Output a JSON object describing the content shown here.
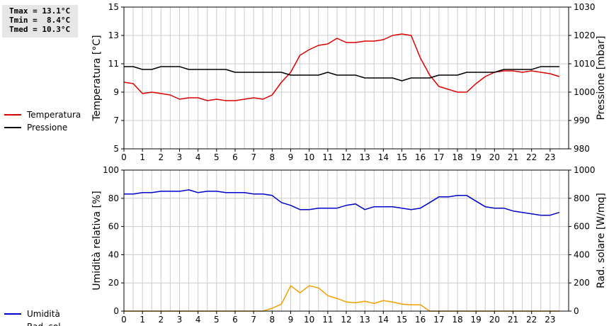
{
  "stats": {
    "tmax": "Tmax = 13.1°C",
    "tmin": "Tmin =  8.4°C",
    "tmed": "Tmed = 10.3°C"
  },
  "colors": {
    "temperature": "#dd0000",
    "pressure": "#000000",
    "humidity": "#0000cc",
    "radiation": "#f0a000",
    "grid": "#cccccc"
  },
  "chart_data": [
    {
      "type": "line",
      "legend_position": "left",
      "grid": true,
      "x_ticks": [
        "0",
        "1",
        "2",
        "3",
        "4",
        "5",
        "6",
        "7",
        "8",
        "9",
        "10",
        "11",
        "12",
        "13",
        "14",
        "15",
        "16",
        "17",
        "18",
        "19",
        "20",
        "21",
        "22",
        "23"
      ],
      "xlim": [
        0,
        24
      ],
      "ylabel": "Temperatura [°C]",
      "ylim": [
        5,
        15
      ],
      "y_ticks": [
        "5",
        "7",
        "9",
        "11",
        "13",
        "15"
      ],
      "y2label": "Pressione [mbar]",
      "y2lim": [
        980,
        1030
      ],
      "y2_ticks": [
        "980",
        "990",
        "1000",
        "1010",
        "1020",
        "1030"
      ],
      "series": [
        {
          "name": "Temperatura",
          "axis": "left",
          "x": [
            0,
            0.5,
            1,
            1.5,
            2,
            2.5,
            3,
            3.5,
            4,
            4.5,
            5,
            5.5,
            6,
            6.5,
            7,
            7.5,
            8,
            8.5,
            9,
            9.5,
            10,
            10.5,
            11,
            11.5,
            12,
            12.5,
            13,
            13.5,
            14,
            14.5,
            15,
            15.5,
            16,
            16.5,
            17,
            17.5,
            18,
            18.5,
            19,
            19.5,
            20,
            20.5,
            21,
            21.5,
            22,
            22.5,
            23,
            23.5
          ],
          "values": [
            9.7,
            9.6,
            8.9,
            9.0,
            8.9,
            8.8,
            8.5,
            8.6,
            8.6,
            8.4,
            8.5,
            8.4,
            8.4,
            8.5,
            8.6,
            8.5,
            8.8,
            9.7,
            10.4,
            11.6,
            12.0,
            12.3,
            12.4,
            12.8,
            12.5,
            12.5,
            12.6,
            12.6,
            12.7,
            13.0,
            13.1,
            13.0,
            11.4,
            10.2,
            9.4,
            9.2,
            9.0,
            9.0,
            9.6,
            10.1,
            10.4,
            10.5,
            10.5,
            10.4,
            10.5,
            10.4,
            10.3,
            10.1
          ]
        },
        {
          "name": "Pressione",
          "axis": "right",
          "x": [
            0,
            0.5,
            1,
            1.5,
            2,
            2.5,
            3,
            3.5,
            4,
            4.5,
            5,
            5.5,
            6,
            6.5,
            7,
            7.5,
            8,
            8.5,
            9,
            9.5,
            10,
            10.5,
            11,
            11.5,
            12,
            12.5,
            13,
            13.5,
            14,
            14.5,
            15,
            15.5,
            16,
            16.5,
            17,
            17.5,
            18,
            18.5,
            19,
            19.5,
            20,
            20.5,
            21,
            21.5,
            22,
            22.5,
            23,
            23.5
          ],
          "values": [
            1009,
            1009,
            1008,
            1008,
            1009,
            1009,
            1009,
            1008,
            1008,
            1008,
            1008,
            1008,
            1007,
            1007,
            1007,
            1007,
            1007,
            1007,
            1006,
            1006,
            1006,
            1006,
            1007,
            1006,
            1006,
            1006,
            1005,
            1005,
            1005,
            1005,
            1004,
            1005,
            1005,
            1005,
            1006,
            1006,
            1006,
            1007,
            1007,
            1007,
            1007,
            1008,
            1008,
            1008,
            1008,
            1009,
            1009,
            1009
          ]
        }
      ]
    },
    {
      "type": "line",
      "legend_position": "left",
      "grid": true,
      "x_ticks": [
        "0",
        "1",
        "2",
        "3",
        "4",
        "5",
        "6",
        "7",
        "8",
        "9",
        "10",
        "11",
        "12",
        "13",
        "14",
        "15",
        "16",
        "17",
        "18",
        "19",
        "20",
        "21",
        "22",
        "23"
      ],
      "xlim": [
        0,
        24
      ],
      "ylabel": "Umidità relativa [%]",
      "ylim": [
        0,
        100
      ],
      "y_ticks": [
        "0",
        "20",
        "40",
        "60",
        "80",
        "100"
      ],
      "y2label": "Rad. solare [W/mq]",
      "y2lim": [
        0,
        1000
      ],
      "y2_ticks": [
        "0",
        "200",
        "400",
        "600",
        "800",
        "1000"
      ],
      "series": [
        {
          "name": "Umidità",
          "axis": "left",
          "x": [
            0,
            0.5,
            1,
            1.5,
            2,
            2.5,
            3,
            3.5,
            4,
            4.5,
            5,
            5.5,
            6,
            6.5,
            7,
            7.5,
            8,
            8.5,
            9,
            9.5,
            10,
            10.5,
            11,
            11.5,
            12,
            12.5,
            13,
            13.5,
            14,
            14.5,
            15,
            15.5,
            16,
            16.5,
            17,
            17.5,
            18,
            18.5,
            19,
            19.5,
            20,
            20.5,
            21,
            21.5,
            22,
            22.5,
            23,
            23.5
          ],
          "values": [
            83,
            83,
            84,
            84,
            85,
            85,
            85,
            86,
            84,
            85,
            85,
            84,
            84,
            84,
            83,
            83,
            82,
            77,
            75,
            72,
            72,
            73,
            73,
            73,
            75,
            76,
            72,
            74,
            74,
            74,
            73,
            72,
            73,
            77,
            81,
            81,
            82,
            82,
            78,
            74,
            73,
            73,
            71,
            70,
            69,
            68,
            68,
            70
          ]
        },
        {
          "name": "Rad. sol.",
          "axis": "right",
          "x": [
            0,
            0.5,
            1,
            1.5,
            2,
            2.5,
            3,
            3.5,
            4,
            4.5,
            5,
            5.5,
            6,
            6.5,
            7,
            7.5,
            8,
            8.5,
            9,
            9.5,
            10,
            10.5,
            11,
            11.5,
            12,
            12.5,
            13,
            13.5,
            14,
            14.5,
            15,
            15.5,
            16,
            16.5,
            17,
            17.5,
            18,
            18.5,
            19,
            19.5,
            20,
            20.5,
            21,
            21.5,
            22,
            22.5,
            23,
            23.5
          ],
          "values": [
            0,
            0,
            0,
            0,
            0,
            0,
            0,
            0,
            0,
            0,
            0,
            0,
            0,
            0,
            0,
            0,
            20,
            50,
            180,
            130,
            180,
            165,
            110,
            90,
            65,
            60,
            70,
            55,
            75,
            65,
            50,
            45,
            45,
            0,
            0,
            0,
            0,
            0,
            0,
            0,
            0,
            0,
            0,
            0,
            0,
            0,
            0,
            0
          ]
        }
      ]
    }
  ]
}
